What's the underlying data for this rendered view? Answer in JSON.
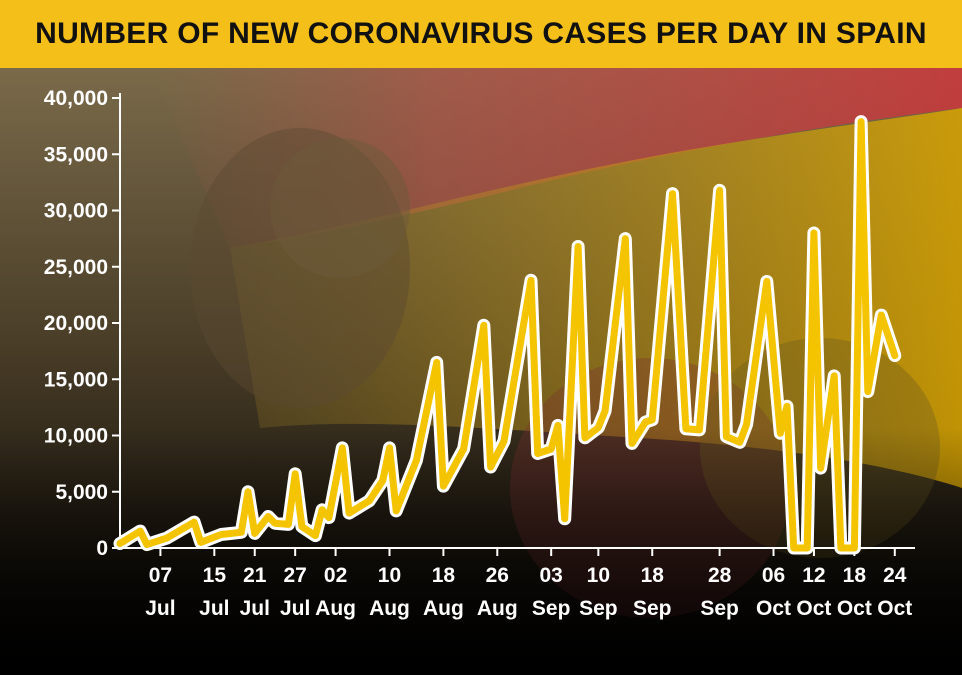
{
  "header": {
    "title": "NUMBER OF NEW CORONAVIRUS CASES PER DAY IN SPAIN"
  },
  "colors": {
    "banner": "#f5bf1a",
    "line": "#f5c400",
    "line_outline": "#ffffff",
    "axis": "#ffffff",
    "text": "#ffffff"
  },
  "chart_data": {
    "type": "line",
    "title": "NUMBER OF NEW CORONAVIRUS CASES PER DAY IN SPAIN",
    "xlabel": "",
    "ylabel": "",
    "ylim": [
      0,
      40000
    ],
    "yticks": [
      0,
      5000,
      10000,
      15000,
      20000,
      25000,
      30000,
      35000,
      40000
    ],
    "ytick_labels": [
      "0",
      "5,000",
      "10,000",
      "15,000",
      "20,000",
      "25,000",
      "30,000",
      "35,000",
      "40,000"
    ],
    "xlim": [
      "2020-07-01",
      "2020-10-27"
    ],
    "xticks": [
      {
        "date": "2020-07-07",
        "line1": "07",
        "line2": "Jul"
      },
      {
        "date": "2020-07-15",
        "line1": "15",
        "line2": "Jul"
      },
      {
        "date": "2020-07-21",
        "line1": "21",
        "line2": "Jul"
      },
      {
        "date": "2020-07-27",
        "line1": "27",
        "line2": "Jul"
      },
      {
        "date": "2020-08-02",
        "line1": "02",
        "line2": "Aug"
      },
      {
        "date": "2020-08-10",
        "line1": "10",
        "line2": "Aug"
      },
      {
        "date": "2020-08-18",
        "line1": "18",
        "line2": "Aug"
      },
      {
        "date": "2020-08-26",
        "line1": "26",
        "line2": "Aug"
      },
      {
        "date": "2020-09-03",
        "line1": "03",
        "line2": "Sep"
      },
      {
        "date": "2020-09-10",
        "line1": "10",
        "line2": "Sep"
      },
      {
        "date": "2020-09-18",
        "line1": "18",
        "line2": "Sep"
      },
      {
        "date": "2020-09-28",
        "line1": "28",
        "line2": "Sep"
      },
      {
        "date": "2020-10-06",
        "line1": "06",
        "line2": "Oct"
      },
      {
        "date": "2020-10-12",
        "line1": "12",
        "line2": "Oct"
      },
      {
        "date": "2020-10-18",
        "line1": "18",
        "line2": "Oct"
      },
      {
        "date": "2020-10-24",
        "line1": "24",
        "line2": "Oct"
      }
    ],
    "grid": false,
    "series": [
      {
        "name": "",
        "points": [
          [
            "2020-07-01",
            400
          ],
          [
            "2020-07-04",
            1500
          ],
          [
            "2020-07-05",
            300
          ],
          [
            "2020-07-08",
            900
          ],
          [
            "2020-07-12",
            2300
          ],
          [
            "2020-07-13",
            500
          ],
          [
            "2020-07-16",
            1200
          ],
          [
            "2020-07-19",
            1400
          ],
          [
            "2020-07-20",
            5000
          ],
          [
            "2020-07-21",
            1300
          ],
          [
            "2020-07-23",
            2800
          ],
          [
            "2020-07-24",
            2200
          ],
          [
            "2020-07-26",
            2100
          ],
          [
            "2020-07-27",
            6600
          ],
          [
            "2020-07-28",
            1900
          ],
          [
            "2020-07-30",
            1100
          ],
          [
            "2020-07-31",
            3400
          ],
          [
            "2020-08-01",
            2700
          ],
          [
            "2020-08-03",
            8900
          ],
          [
            "2020-08-04",
            3100
          ],
          [
            "2020-08-07",
            4200
          ],
          [
            "2020-08-09",
            6000
          ],
          [
            "2020-08-10",
            8900
          ],
          [
            "2020-08-11",
            3300
          ],
          [
            "2020-08-14",
            7800
          ],
          [
            "2020-08-17",
            16500
          ],
          [
            "2020-08-18",
            5500
          ],
          [
            "2020-08-21",
            8800
          ],
          [
            "2020-08-24",
            19800
          ],
          [
            "2020-08-25",
            7200
          ],
          [
            "2020-08-27",
            9500
          ],
          [
            "2020-08-31",
            23800
          ],
          [
            "2020-09-01",
            8400
          ],
          [
            "2020-09-03",
            8800
          ],
          [
            "2020-09-04",
            10900
          ],
          [
            "2020-09-05",
            2600
          ],
          [
            "2020-09-07",
            26800
          ],
          [
            "2020-09-08",
            9800
          ],
          [
            "2020-09-10",
            10700
          ],
          [
            "2020-09-11",
            12200
          ],
          [
            "2020-09-14",
            27500
          ],
          [
            "2020-09-15",
            9300
          ],
          [
            "2020-09-17",
            11200
          ],
          [
            "2020-09-18",
            11400
          ],
          [
            "2020-09-21",
            31500
          ],
          [
            "2020-09-23",
            10600
          ],
          [
            "2020-09-25",
            10500
          ],
          [
            "2020-09-28",
            31800
          ],
          [
            "2020-09-29",
            9900
          ],
          [
            "2020-10-01",
            9400
          ],
          [
            "2020-10-02",
            11000
          ],
          [
            "2020-10-05",
            23700
          ],
          [
            "2020-10-07",
            10200
          ],
          [
            "2020-10-08",
            12600
          ],
          [
            "2020-10-09",
            0
          ],
          [
            "2020-10-11",
            0
          ],
          [
            "2020-10-12",
            28000
          ],
          [
            "2020-10-13",
            7100
          ],
          [
            "2020-10-15",
            15300
          ],
          [
            "2020-10-16",
            0
          ],
          [
            "2020-10-18",
            0
          ],
          [
            "2020-10-19",
            37900
          ],
          [
            "2020-10-20",
            13900
          ],
          [
            "2020-10-22",
            20700
          ],
          [
            "2020-10-24",
            17100
          ]
        ]
      }
    ]
  }
}
